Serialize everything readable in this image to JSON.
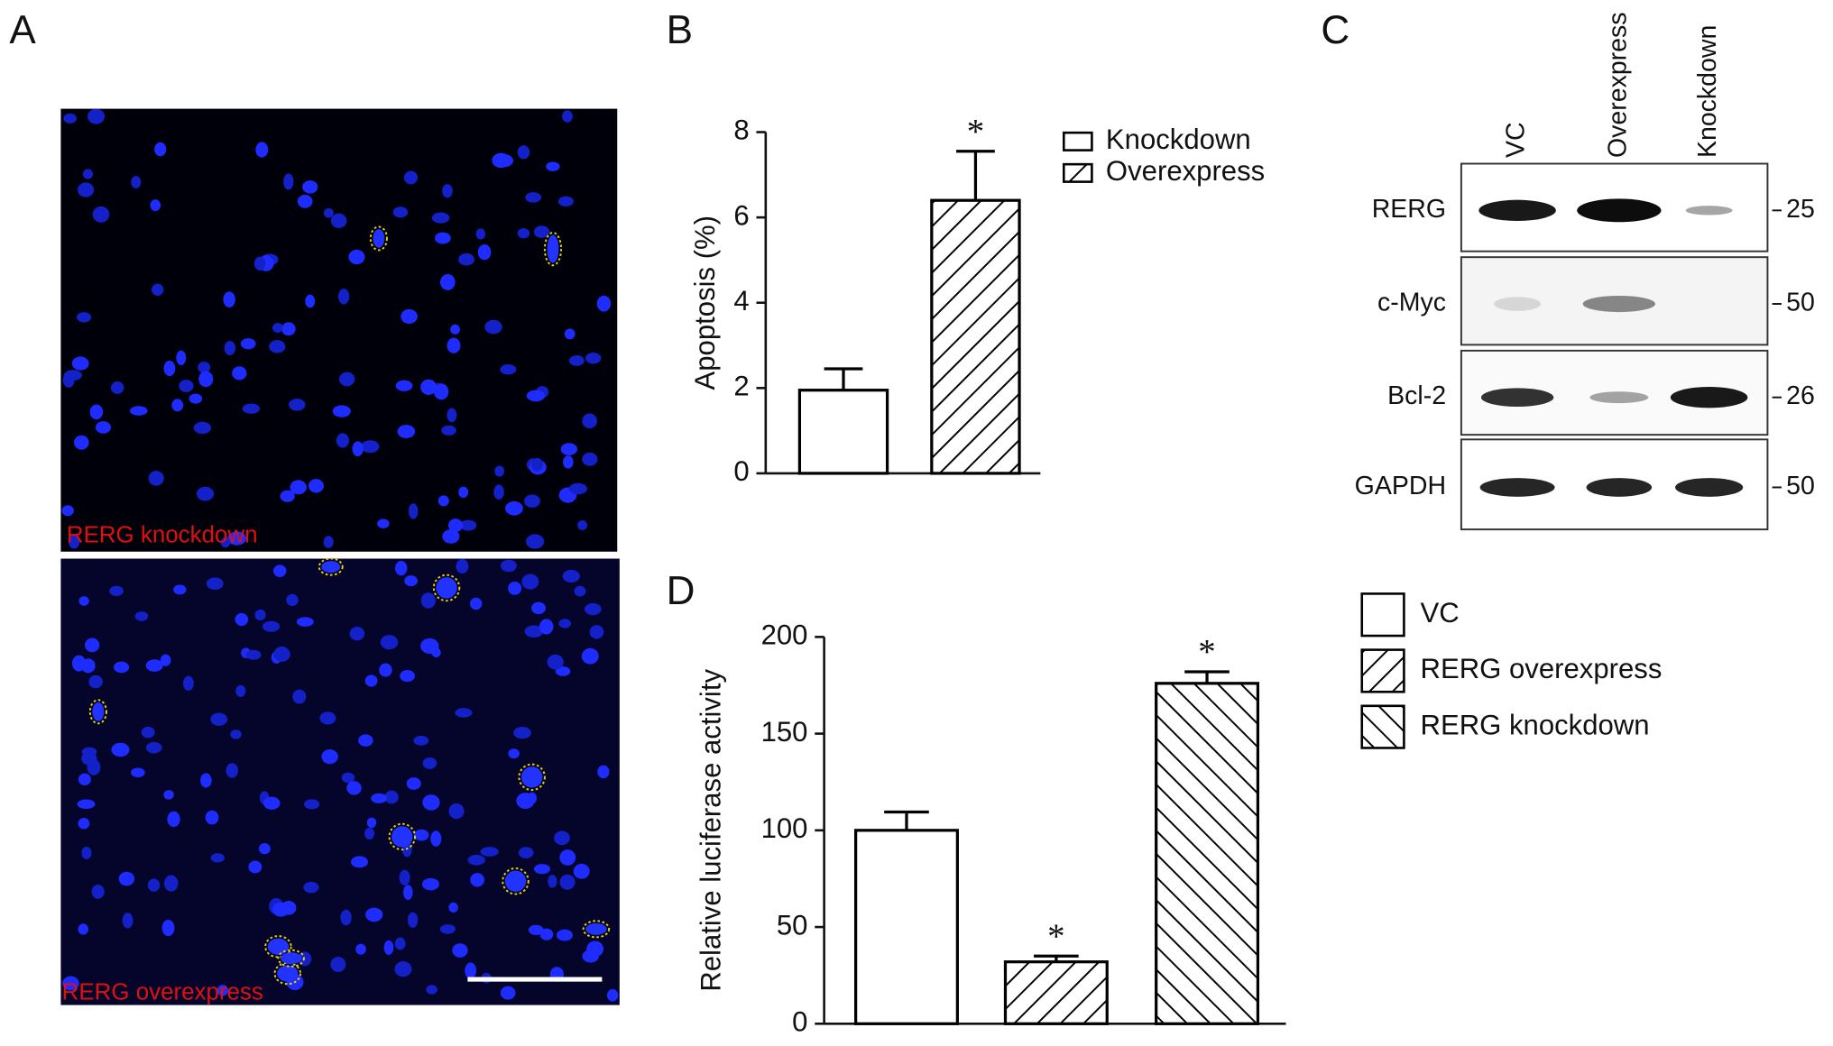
{
  "panel_labels": [
    "A",
    "B",
    "C",
    "D"
  ],
  "panel_a": {
    "images": [
      {
        "label": "RERG knockdown"
      },
      {
        "label": "RERG overexpress"
      }
    ]
  },
  "panel_c": {
    "columns": [
      "VC",
      "Overexpress",
      "Knockdown"
    ],
    "rows": [
      {
        "protein": "RERG",
        "mw": 25
      },
      {
        "protein": "c-Myc",
        "mw": 50
      },
      {
        "protein": "Bcl-2",
        "mw": 26
      },
      {
        "protein": "GAPDH",
        "mw": 50
      }
    ]
  },
  "chart_data": [
    {
      "type": "bar",
      "y_label": "Apoptosis (%)",
      "categories": [
        null
      ],
      "ylim": [
        0,
        8
      ],
      "yticks": [
        0,
        2,
        4,
        6,
        8
      ],
      "series": [
        {
          "name": "Knockdown",
          "color": "#000000",
          "pattern": "none",
          "values": [
            1.95
          ],
          "errors": [
            0.5
          ]
        },
        {
          "name": "Overexpress",
          "color": "#000000",
          "pattern": "forward-hatch",
          "values": [
            6.4
          ],
          "errors": [
            1.15
          ],
          "annotation": "*"
        }
      ]
    },
    {
      "type": "bar",
      "y_label": "Relative luciferase activity",
      "categories": [
        null
      ],
      "ylim": [
        0,
        200
      ],
      "yticks": [
        0,
        50,
        100,
        150,
        200
      ],
      "series": [
        {
          "name": "VC",
          "color": "#000000",
          "pattern": "none",
          "values": [
            100
          ],
          "errors": [
            9.5
          ]
        },
        {
          "name": "RERG overexpress",
          "color": "#000000",
          "pattern": "forward-hatch",
          "values": [
            32
          ],
          "errors": [
            3
          ],
          "annotation": "*"
        },
        {
          "name": "RERG knockdown",
          "color": "#000000",
          "pattern": "back-hatch",
          "values": [
            176
          ],
          "errors": [
            6
          ],
          "annotation": "*"
        }
      ]
    }
  ]
}
